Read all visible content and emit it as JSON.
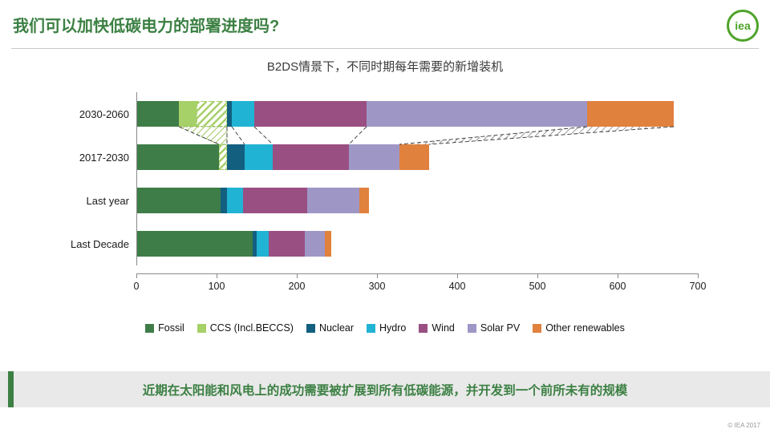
{
  "header": {
    "title": "我们可以加快低碳电力的部署进度吗?",
    "logo_text": "iea"
  },
  "footer": {
    "banner_text": "近期在太阳能和风电上的成功需要被扩展到所有低碳能源，并开发到一个前所未有的规模",
    "copyright": "© IEA 2017"
  },
  "colors": {
    "accent_green": "#3c8043",
    "banner_bg": "#e9e9e9",
    "axis": "#8a8a8a",
    "logo_green": "#4fa32a"
  },
  "chart_data": {
    "type": "bar",
    "orientation": "horizontal",
    "title": "B2DS情景下，不同时期每年需要的新增装机",
    "xlim": [
      0,
      700
    ],
    "x_ticks": [
      0,
      100,
      200,
      300,
      400,
      500,
      600,
      700
    ],
    "categories": [
      "2030-2060",
      "2017-2030",
      "Last year",
      "Last Decade"
    ],
    "legend": [
      {
        "key": "fossil",
        "label": "Fossil",
        "color": "#3f7d48"
      },
      {
        "key": "ccs",
        "label": "CCS (Incl.BECCS)",
        "color": "#a6d068"
      },
      {
        "key": "nuclear",
        "label": "Nuclear",
        "color": "#135f80"
      },
      {
        "key": "hydro",
        "label": "Hydro",
        "color": "#21b3d3"
      },
      {
        "key": "wind",
        "label": "Wind",
        "color": "#9a4f82"
      },
      {
        "key": "solar",
        "label": "Solar PV",
        "color": "#9e97c6"
      },
      {
        "key": "other",
        "label": "Other renewables",
        "color": "#e0813e"
      }
    ],
    "rows": [
      {
        "label": "2030-2060",
        "segments": [
          {
            "key": "fossil",
            "value": 53
          },
          {
            "key": "ccs",
            "value": 22
          },
          {
            "key": "ccs",
            "value": 38,
            "hatched": true
          },
          {
            "key": "nuclear",
            "value": 6
          },
          {
            "key": "hydro",
            "value": 28
          },
          {
            "key": "wind",
            "value": 140
          },
          {
            "key": "solar",
            "value": 275
          },
          {
            "key": "other",
            "value": 108
          }
        ]
      },
      {
        "label": "2017-2030",
        "segments": [
          {
            "key": "fossil",
            "value": 103
          },
          {
            "key": "ccs",
            "value": 10,
            "hatched": true
          },
          {
            "key": "nuclear",
            "value": 22
          },
          {
            "key": "hydro",
            "value": 35
          },
          {
            "key": "wind",
            "value": 95
          },
          {
            "key": "solar",
            "value": 63
          },
          {
            "key": "other",
            "value": 37
          }
        ]
      },
      {
        "label": "Last year",
        "segments": [
          {
            "key": "fossil",
            "value": 105
          },
          {
            "key": "nuclear",
            "value": 8
          },
          {
            "key": "hydro",
            "value": 20
          },
          {
            "key": "wind",
            "value": 80
          },
          {
            "key": "solar",
            "value": 65
          },
          {
            "key": "other",
            "value": 12
          }
        ]
      },
      {
        "label": "Last Decade",
        "segments": [
          {
            "key": "fossil",
            "value": 145
          },
          {
            "key": "nuclear",
            "value": 5
          },
          {
            "key": "hydro",
            "value": 15
          },
          {
            "key": "wind",
            "value": 45
          },
          {
            "key": "solar",
            "value": 25
          },
          {
            "key": "other",
            "value": 8
          }
        ]
      }
    ]
  }
}
